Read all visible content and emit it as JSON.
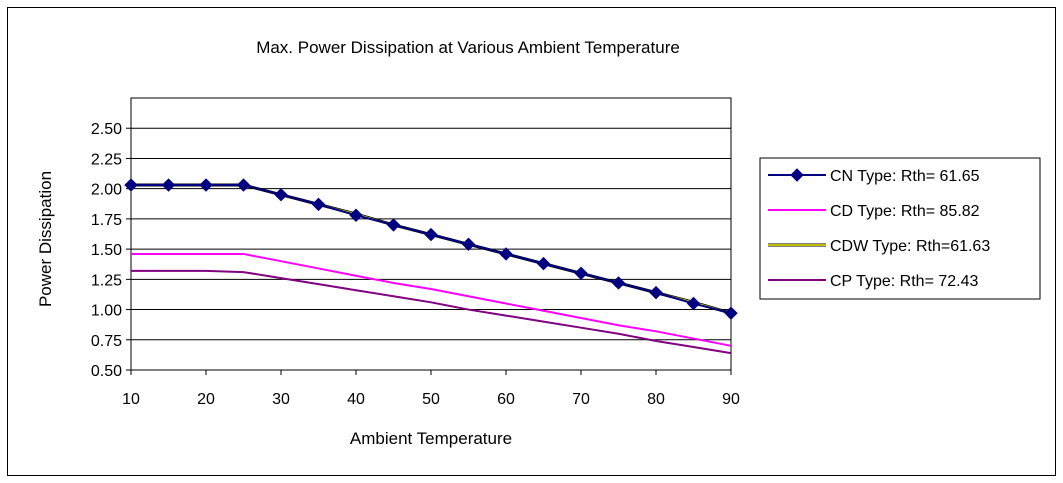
{
  "chart_data": {
    "type": "line",
    "title": "Max. Power Dissipation at Various Ambient Temperature",
    "xlabel": "Ambient Temperature",
    "ylabel": "Power Dissipation",
    "x": [
      10,
      15,
      20,
      25,
      30,
      35,
      40,
      45,
      50,
      55,
      60,
      65,
      70,
      75,
      80,
      85,
      90
    ],
    "xticks": [
      "10",
      "20",
      "30",
      "40",
      "50",
      "60",
      "70",
      "80",
      "90"
    ],
    "yticks": [
      "0.50",
      "0.75",
      "1.00",
      "1.25",
      "1.50",
      "1.75",
      "2.00",
      "2.25",
      "2.50"
    ],
    "xlim": [
      10,
      90
    ],
    "ylim": [
      0.5,
      2.75
    ],
    "grid": "horizontal",
    "legend_position": "right",
    "series": [
      {
        "name": "CN Type: Rth= 61.65",
        "color": "#000080",
        "marker": "diamond",
        "values": [
          2.03,
          2.03,
          2.03,
          2.03,
          1.95,
          1.87,
          1.78,
          1.7,
          1.62,
          1.54,
          1.46,
          1.38,
          1.3,
          1.22,
          1.14,
          1.05,
          0.97
        ]
      },
      {
        "name": "CD Type: Rth= 85.82",
        "color": "#ff00ff",
        "marker": "none",
        "values": [
          1.46,
          1.46,
          1.46,
          1.46,
          1.4,
          1.34,
          1.28,
          1.22,
          1.17,
          1.11,
          1.05,
          0.99,
          0.93,
          0.87,
          0.82,
          0.76,
          0.7
        ]
      },
      {
        "name": "CDW Type: Rth=61.63",
        "color": "#ffff00",
        "marker": "none",
        "values": [
          2.03,
          2.03,
          2.03,
          2.03,
          1.95,
          1.87,
          1.79,
          1.7,
          1.62,
          1.54,
          1.46,
          1.38,
          1.3,
          1.22,
          1.14,
          1.06,
          0.97
        ]
      },
      {
        "name": "CP Type: Rth= 72.43",
        "color": "#800080",
        "marker": "none",
        "values": [
          1.32,
          1.32,
          1.32,
          1.31,
          1.26,
          1.21,
          1.16,
          1.11,
          1.06,
          1.0,
          0.95,
          0.9,
          0.85,
          0.8,
          0.74,
          0.69,
          0.64
        ]
      }
    ]
  }
}
